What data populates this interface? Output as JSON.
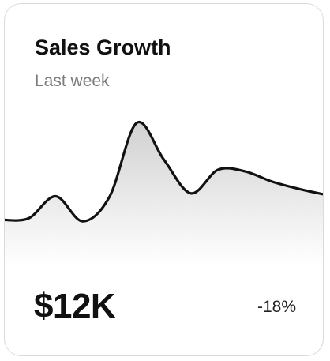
{
  "card": {
    "title": "Sales Growth",
    "period": "Last week",
    "value": "$12K",
    "change": "-18%"
  },
  "chart_data": {
    "type": "area",
    "x": [
      0,
      1,
      2,
      3,
      4,
      5,
      6,
      7,
      8,
      9,
      10,
      11,
      12
    ],
    "values": [
      9,
      10,
      25,
      8,
      25,
      75,
      50,
      27,
      43,
      42,
      35,
      30,
      26
    ],
    "ylim": [
      0,
      100
    ],
    "grid": false,
    "colors": {
      "line": "#111111",
      "fill_top": "#cfcfcf",
      "fill_bottom": "#ffffff"
    }
  }
}
